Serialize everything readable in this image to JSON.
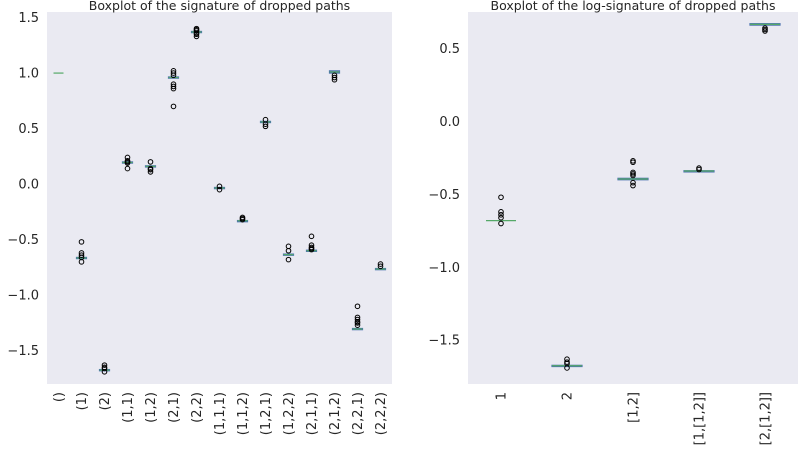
{
  "chart_data": [
    {
      "type": "boxplot",
      "title": "Boxplot of the signature of dropped paths",
      "xlabel": "",
      "ylabel": "",
      "ylim": [
        -1.8,
        1.55
      ],
      "yticks": [
        -1.5,
        -1.0,
        -0.5,
        0.0,
        0.5,
        1.0,
        1.5
      ],
      "ytick_labels": [
        "−1.5",
        "−1.0",
        "−0.5",
        "0.0",
        "0.5",
        "1.0",
        "1.5"
      ],
      "categories": [
        "()",
        "(1)",
        "(2)",
        "(1,1)",
        "(1,2)",
        "(2,1)",
        "(2,2)",
        "(1,1,1)",
        "(1,1,2)",
        "(1,2,1)",
        "(1,2,2)",
        "(2,1,1)",
        "(2,1,2)",
        "(2,2,1)",
        "(2,2,2)"
      ],
      "boxes": [
        {
          "median": 1.0,
          "q1": 1.0,
          "q3": 1.0,
          "outliers": []
        },
        {
          "median": -0.665,
          "q1": -0.67,
          "q3": -0.66,
          "outliers": [
            -0.52,
            -0.62,
            -0.64,
            -0.66,
            -0.7
          ]
        },
        {
          "median": -1.675,
          "q1": -1.68,
          "q3": -1.67,
          "outliers": [
            -1.63,
            -1.65,
            -1.66,
            -1.69
          ]
        },
        {
          "median": 0.195,
          "q1": 0.19,
          "q3": 0.2,
          "outliers": [
            0.14,
            0.19,
            0.2,
            0.21,
            0.24
          ]
        },
        {
          "median": 0.16,
          "q1": 0.155,
          "q3": 0.165,
          "outliers": [
            0.11,
            0.13,
            0.14,
            0.2
          ]
        },
        {
          "median": 0.96,
          "q1": 0.955,
          "q3": 0.965,
          "outliers": [
            0.7,
            0.86,
            0.88,
            0.9,
            0.98,
            1.0,
            1.02
          ]
        },
        {
          "median": 1.37,
          "q1": 1.365,
          "q3": 1.375,
          "outliers": [
            1.33,
            1.35,
            1.36,
            1.38,
            1.39,
            1.4
          ]
        },
        {
          "median": -0.035,
          "q1": -0.04,
          "q3": -0.03,
          "outliers": [
            -0.02,
            -0.05
          ]
        },
        {
          "median": -0.33,
          "q1": -0.332,
          "q3": -0.328,
          "outliers": [
            -0.3,
            -0.31,
            -0.32
          ]
        },
        {
          "median": 0.56,
          "q1": 0.555,
          "q3": 0.565,
          "outliers": [
            0.52,
            0.54,
            0.58
          ]
        },
        {
          "median": -0.635,
          "q1": -0.64,
          "q3": -0.63,
          "outliers": [
            -0.56,
            -0.6,
            -0.68
          ]
        },
        {
          "median": -0.6,
          "q1": -0.605,
          "q3": -0.595,
          "outliers": [
            -0.47,
            -0.55,
            -0.57,
            -0.58,
            -0.59
          ]
        },
        {
          "median": 1.01,
          "q1": 1.0,
          "q3": 1.02,
          "outliers": [
            0.94,
            0.96,
            0.98
          ]
        },
        {
          "median": -1.305,
          "q1": -1.31,
          "q3": -1.3,
          "outliers": [
            -1.1,
            -1.2,
            -1.22,
            -1.24,
            -1.25,
            -1.27
          ]
        },
        {
          "median": -0.765,
          "q1": -0.77,
          "q3": -0.76,
          "outliers": [
            -0.72,
            -0.74
          ]
        }
      ]
    },
    {
      "type": "boxplot",
      "title": "Boxplot of the log-signature of dropped paths",
      "xlabel": "",
      "ylabel": "",
      "ylim": [
        -1.8,
        0.75
      ],
      "yticks": [
        -1.5,
        -1.0,
        -0.5,
        0.0,
        0.5
      ],
      "ytick_labels": [
        "−1.5",
        "−1.0",
        "−0.5",
        "0.0",
        "0.5"
      ],
      "categories": [
        "1",
        "2",
        "[1,2]",
        "[1,[1,2]]",
        "[2,[1,2]]"
      ],
      "boxes": [
        {
          "median": -0.68,
          "q1": -0.68,
          "q3": -0.68,
          "outliers": [
            -0.52,
            -0.62,
            -0.64,
            -0.66,
            -0.7
          ]
        },
        {
          "median": -1.675,
          "q1": -1.678,
          "q3": -1.672,
          "outliers": [
            -1.63,
            -1.65,
            -1.66,
            -1.69
          ]
        },
        {
          "median": -0.395,
          "q1": -0.4,
          "q3": -0.39,
          "outliers": [
            -0.27,
            -0.28,
            -0.35,
            -0.36,
            -0.37,
            -0.42,
            -0.44
          ]
        },
        {
          "median": -0.34,
          "q1": -0.342,
          "q3": -0.338,
          "outliers": [
            -0.32,
            -0.33
          ]
        },
        {
          "median": 0.665,
          "q1": 0.66,
          "q3": 0.67,
          "outliers": [
            0.62,
            0.63,
            0.64
          ]
        }
      ]
    }
  ],
  "colors": {
    "plot_bg": "#eaeaf2",
    "box": "#4c72b0",
    "median": "#55a868",
    "outlier": "#000000",
    "text": "#262626"
  }
}
